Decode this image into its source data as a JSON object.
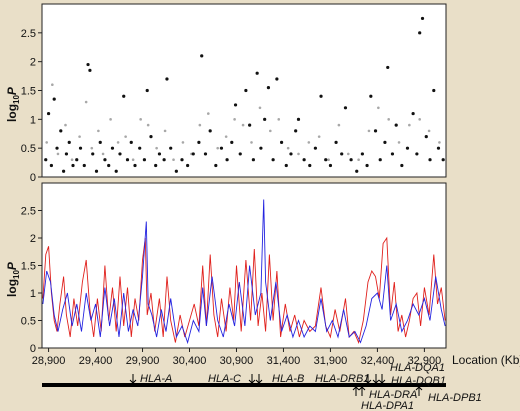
{
  "chart_data": [
    {
      "type": "scatter",
      "ylabel": {
        "base": "log",
        "subscript": "10",
        "var": "P"
      },
      "xlim": [
        28830,
        33130
      ],
      "ylim": [
        0,
        3
      ],
      "yticks": [
        0,
        0.5,
        1,
        1.5,
        2,
        2.5
      ],
      "series": [
        {
          "color": "#111111",
          "marker_size": 1.6,
          "x": [
            28870,
            28900,
            28930,
            28960,
            28990,
            29030,
            29060,
            29090,
            29120,
            29160,
            29200,
            29240,
            29280,
            29320,
            29340,
            29370,
            29410,
            29450,
            29500,
            29540,
            29580,
            29620,
            29660,
            29700,
            29740,
            29780,
            29820,
            29870,
            29920,
            29950,
            29990,
            30040,
            30080,
            30130,
            30160,
            30200,
            30260,
            30320,
            30380,
            30440,
            30500,
            30530,
            30570,
            30620,
            30680,
            30740,
            30800,
            30850,
            30890,
            30940,
            31000,
            31040,
            31080,
            31120,
            31160,
            31200,
            31240,
            31290,
            31330,
            31380,
            31430,
            31480,
            31530,
            31560,
            31620,
            31680,
            31740,
            31800,
            31850,
            31900,
            31960,
            32020,
            32060,
            32120,
            32180,
            32240,
            32290,
            32330,
            32380,
            32430,
            32480,
            32510,
            32560,
            32600,
            32660,
            32720,
            32780,
            32820,
            32850,
            32880,
            32920,
            32960,
            33000,
            33050,
            33100
          ],
          "values": [
            0.3,
            1.1,
            0.2,
            1.35,
            0.5,
            0.8,
            0.1,
            0.4,
            0.6,
            0.2,
            0.3,
            0.5,
            0.2,
            1.95,
            1.85,
            0.4,
            0.1,
            0.6,
            0.3,
            0.2,
            0.5,
            0.1,
            0.4,
            1.4,
            0.3,
            0.6,
            0.2,
            0.5,
            0.3,
            1.5,
            0.7,
            0.2,
            0.4,
            0.3,
            1.7,
            0.5,
            0.1,
            0.3,
            0.2,
            0.4,
            0.6,
            2.1,
            0.4,
            0.8,
            0.2,
            0.5,
            0.3,
            0.6,
            1.25,
            0.4,
            1.5,
            0.9,
            0.3,
            1.8,
            0.5,
            1.0,
            1.55,
            0.3,
            1.7,
            0.6,
            0.2,
            0.4,
            0.8,
            1.0,
            0.3,
            0.2,
            0.5,
            1.4,
            0.3,
            0.2,
            0.6,
            0.4,
            1.2,
            0.3,
            0.1,
            0.4,
            0.2,
            1.4,
            0.8,
            0.3,
            0.6,
            1.9,
            0.4,
            0.9,
            0.2,
            0.5,
            1.1,
            0.4,
            2.5,
            2.75,
            0.7,
            0.3,
            1.5,
            0.5,
            0.3
          ]
        },
        {
          "color": "#a8a8a8",
          "marker_size": 1.3,
          "x": [
            28880,
            28940,
            29000,
            29080,
            29150,
            29230,
            29300,
            29360,
            29430,
            29480,
            29560,
            29640,
            29720,
            29800,
            29880,
            29960,
            30050,
            30140,
            30230,
            30330,
            30420,
            30510,
            30600,
            30700,
            30790,
            30880,
            30970,
            31060,
            31150,
            31260,
            31350,
            31450,
            31560,
            31670,
            31780,
            31880,
            31990,
            32090,
            32200,
            32310,
            32410,
            32520,
            32630,
            32740,
            32850,
            32950,
            33060
          ],
          "values": [
            0.6,
            1.6,
            0.4,
            0.9,
            0.3,
            0.7,
            1.3,
            0.5,
            0.8,
            0.4,
            1.0,
            0.6,
            0.7,
            0.3,
            1.0,
            0.9,
            0.5,
            0.8,
            0.3,
            0.6,
            0.4,
            0.9,
            1.1,
            0.5,
            0.7,
            1.0,
            0.9,
            0.6,
            1.2,
            0.8,
            1.0,
            0.5,
            0.4,
            0.6,
            0.7,
            0.3,
            0.9,
            0.4,
            0.3,
            0.8,
            1.2,
            1.0,
            0.6,
            0.9,
            1.0,
            0.8,
            0.6
          ]
        }
      ]
    },
    {
      "type": "line",
      "ylabel": {
        "base": "log",
        "subscript": "10",
        "var": "P"
      },
      "xlabel": "Location (Kb)",
      "xlim": [
        28830,
        33130
      ],
      "ylim": [
        0,
        3
      ],
      "yticks": [
        0,
        0.5,
        1,
        1.5,
        2,
        2.5
      ],
      "xticks": [
        {
          "value": 28900,
          "label": "28,900"
        },
        {
          "value": 29400,
          "label": "29,400"
        },
        {
          "value": 29900,
          "label": "29,900"
        },
        {
          "value": 30400,
          "label": "30,400"
        },
        {
          "value": 30900,
          "label": "30,900"
        },
        {
          "value": 31400,
          "label": "31,400"
        },
        {
          "value": 31900,
          "label": "31,900"
        },
        {
          "value": 32400,
          "label": "32,400"
        },
        {
          "value": 32900,
          "label": "32,900"
        }
      ],
      "series": [
        {
          "color": "#e0201c",
          "x": [
            28840,
            28870,
            28900,
            28930,
            28960,
            28990,
            29020,
            29060,
            29090,
            29130,
            29170,
            29210,
            29260,
            29300,
            29340,
            29380,
            29420,
            29460,
            29500,
            29540,
            29580,
            29620,
            29660,
            29700,
            29740,
            29780,
            29820,
            29860,
            29900,
            29930,
            29950,
            29990,
            30030,
            30080,
            30120,
            30160,
            30200,
            30250,
            30300,
            30350,
            30400,
            30450,
            30500,
            30540,
            30580,
            30620,
            30660,
            30700,
            30740,
            30790,
            30830,
            30870,
            30900,
            30950,
            31000,
            31050,
            31090,
            31130,
            31170,
            31210,
            31250,
            31290,
            31330,
            31370,
            31420,
            31470,
            31520,
            31570,
            31620,
            31680,
            31740,
            31800,
            31850,
            31900,
            31950,
            32000,
            32060,
            32100,
            32150,
            32200,
            32250,
            32300,
            32340,
            32380,
            32420,
            32460,
            32500,
            32540,
            32580,
            32620,
            32660,
            32700,
            32740,
            32780,
            32820,
            32860,
            32900,
            32950,
            33000,
            33040,
            33080,
            33120
          ],
          "values": [
            0.9,
            1.7,
            1.85,
            1.0,
            0.5,
            0.3,
            0.8,
            1.3,
            0.6,
            0.2,
            0.9,
            0.4,
            1.2,
            1.6,
            0.7,
            0.2,
            0.9,
            0.3,
            1.5,
            0.5,
            1.1,
            0.3,
            1.3,
            0.4,
            1.1,
            0.2,
            0.9,
            0.5,
            1.6,
            2.0,
            0.6,
            1.0,
            0.3,
            0.9,
            0.2,
            1.3,
            0.5,
            0.1,
            0.6,
            0.2,
            0.5,
            0.8,
            0.4,
            1.5,
            0.4,
            1.7,
            0.6,
            0.2,
            0.9,
            0.3,
            1.1,
            0.5,
            1.5,
            0.3,
            1.6,
            0.5,
            1.8,
            0.4,
            1.0,
            0.3,
            1.7,
            0.5,
            1.4,
            0.2,
            0.8,
            0.3,
            0.6,
            0.2,
            0.5,
            0.3,
            0.4,
            1.1,
            0.4,
            0.2,
            0.7,
            0.3,
            0.9,
            0.2,
            0.3,
            0.1,
            0.5,
            1.2,
            1.4,
            1.3,
            0.9,
            1.9,
            2.0,
            0.6,
            1.2,
            0.3,
            0.6,
            0.2,
            0.5,
            0.9,
            1.0,
            0.4,
            1.1,
            0.6,
            1.7,
            0.8,
            1.1,
            0.5
          ]
        },
        {
          "color": "#2424e0",
          "x": [
            28840,
            28880,
            28920,
            28960,
            29000,
            29050,
            29100,
            29150,
            29200,
            29250,
            29300,
            29350,
            29400,
            29450,
            29500,
            29550,
            29600,
            29650,
            29700,
            29750,
            29800,
            29850,
            29900,
            29940,
            29960,
            30000,
            30050,
            30100,
            30150,
            30200,
            30260,
            30320,
            30380,
            30440,
            30500,
            30540,
            30580,
            30640,
            30700,
            30760,
            30820,
            30880,
            30930,
            30990,
            31040,
            31100,
            31160,
            31190,
            31210,
            31260,
            31320,
            31380,
            31440,
            31500,
            31560,
            31620,
            31680,
            31740,
            31800,
            31860,
            31920,
            31980,
            32040,
            32100,
            32160,
            32220,
            32280,
            32340,
            32400,
            32450,
            32500,
            32540,
            32600,
            32660,
            32720,
            32780,
            32840,
            32900,
            32960,
            33020,
            33080,
            33120
          ],
          "values": [
            0.8,
            1.4,
            1.2,
            0.6,
            0.3,
            0.7,
            1.0,
            0.4,
            0.8,
            0.3,
            1.0,
            0.5,
            0.8,
            0.2,
            1.1,
            0.4,
            0.9,
            0.2,
            1.0,
            0.3,
            0.7,
            0.4,
            1.3,
            2.3,
            0.8,
            0.6,
            0.2,
            0.7,
            0.3,
            0.9,
            0.2,
            0.4,
            0.1,
            0.5,
            0.3,
            1.1,
            0.4,
            1.3,
            0.5,
            0.2,
            0.8,
            0.4,
            1.2,
            0.4,
            1.5,
            0.6,
            1.0,
            2.7,
            1.2,
            0.5,
            1.2,
            0.3,
            0.6,
            0.2,
            0.5,
            0.2,
            0.4,
            0.3,
            0.9,
            0.3,
            0.5,
            0.2,
            0.7,
            0.2,
            0.3,
            0.1,
            0.4,
            0.9,
            1.0,
            0.7,
            1.5,
            0.5,
            0.8,
            0.3,
            0.5,
            0.8,
            0.6,
            0.9,
            0.5,
            1.3,
            0.7,
            0.4
          ]
        }
      ]
    }
  ],
  "gene_map": {
    "genes": [
      "HLA-A",
      "HLA-C",
      "HLA-B",
      "HLA-DRB1",
      "HLA-DQA1",
      "HLA-DQB1",
      "HLA-DRA",
      "HLA-DPA1",
      "HLA-DPB1"
    ]
  }
}
